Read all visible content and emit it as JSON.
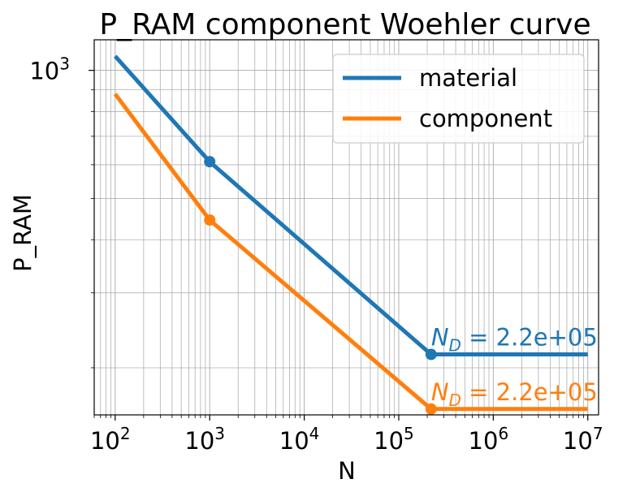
{
  "chart_data": {
    "type": "line",
    "title": "P_RAM component Woehler curve",
    "xlabel": "N",
    "ylabel": "P_RAM",
    "xscale": "log",
    "yscale": "log",
    "xlim": [
      60,
      13000000
    ],
    "ylim": [
      155,
      1180
    ],
    "grid": true,
    "legend_position": "upper right",
    "x_ticks": [
      {
        "base": "10",
        "exp": "2",
        "value": 100
      },
      {
        "base": "10",
        "exp": "3",
        "value": 1000
      },
      {
        "base": "10",
        "exp": "4",
        "value": 10000
      },
      {
        "base": "10",
        "exp": "5",
        "value": 100000
      },
      {
        "base": "10",
        "exp": "6",
        "value": 1000000
      },
      {
        "base": "10",
        "exp": "7",
        "value": 10000000
      }
    ],
    "y_ticks": [
      {
        "base": "10",
        "exp": "3",
        "value": 1000
      }
    ],
    "series": [
      {
        "name": "material",
        "color": "#1f77b4",
        "x": [
          100,
          1000,
          220000,
          10000000
        ],
        "y": [
          1080,
          610,
          215,
          215
        ],
        "markers": [
          {
            "x": 1000,
            "y": 610
          },
          {
            "x": 220000,
            "y": 215
          }
        ]
      },
      {
        "name": "component",
        "color": "#ff7f0e",
        "x": [
          100,
          1000,
          220000,
          10000000
        ],
        "y": [
          880,
          445,
          160,
          160
        ],
        "markers": [
          {
            "x": 1000,
            "y": 445
          },
          {
            "x": 220000,
            "y": 160
          }
        ]
      }
    ],
    "annotations": [
      {
        "series": "material",
        "symbol": "N",
        "subscript": "D",
        "text": " = 2.2e+05",
        "x": 220000,
        "y": 215,
        "color": "#1f77b4"
      },
      {
        "series": "component",
        "symbol": "N",
        "subscript": "D",
        "text": " = 2.2e+05",
        "x": 220000,
        "y": 160,
        "color": "#ff7f0e"
      }
    ]
  }
}
